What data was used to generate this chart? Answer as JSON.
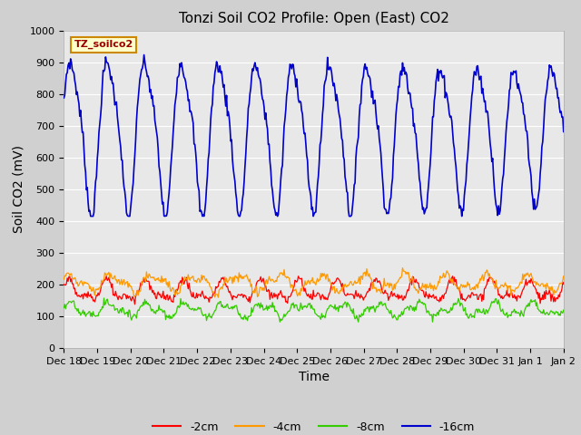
{
  "title": "Tonzi Soil CO2 Profile: Open (East) CO2",
  "ylabel": "Soil CO2 (mV)",
  "xlabel": "Time",
  "legend_label": "TZ_soilco2",
  "ylim": [
    0,
    1000
  ],
  "yticks": [
    0,
    100,
    200,
    300,
    400,
    500,
    600,
    700,
    800,
    900,
    1000
  ],
  "fig_bg_color": "#d0d0d0",
  "plot_bg_color": "#e8e8e8",
  "grid_color": "#ffffff",
  "line_colors": {
    "-2cm": "#ff0000",
    "-4cm": "#ff9900",
    "-8cm": "#33cc00",
    "-16cm": "#0000cc"
  },
  "title_fontsize": 11,
  "axis_label_fontsize": 10,
  "tick_fontsize": 8,
  "legend_fontsize": 9,
  "n_points": 600,
  "x_start": 18,
  "x_end": 33,
  "xtick_positions": [
    18,
    19,
    20,
    21,
    22,
    23,
    24,
    25,
    26,
    27,
    28,
    29,
    30,
    31,
    32,
    33
  ],
  "xtick_labels": [
    "Dec 18",
    "Dec 19",
    "Dec 20",
    "Dec 21",
    "Dec 22",
    "Dec 23",
    "Dec 24",
    "Dec 25",
    "Dec 26",
    "Dec 27",
    "Dec 28",
    "Dec 29",
    "Dec 30",
    "Dec 31",
    "Jan 1",
    "Jan 2"
  ]
}
